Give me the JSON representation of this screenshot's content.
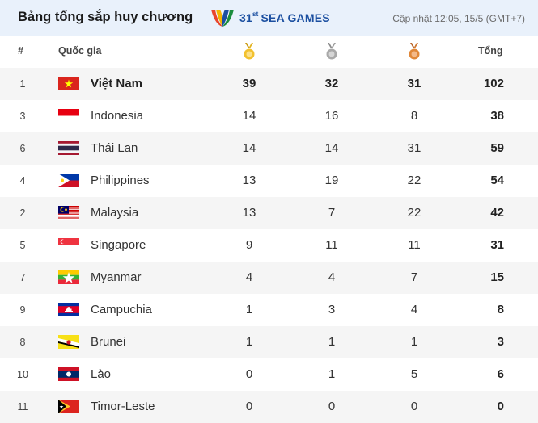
{
  "header": {
    "title": "Bảng tổng sắp huy chương",
    "logo_number": "31",
    "logo_suffix": "st",
    "logo_text": "SEA GAMES",
    "updated": "Cập nhật 12:05, 15/5 (GMT+7)"
  },
  "columns": {
    "rank": "#",
    "country": "Quốc gia",
    "gold_icon": "gold-medal-icon",
    "silver_icon": "silver-medal-icon",
    "bronze_icon": "bronze-medal-icon",
    "total": "Tổng"
  },
  "colors": {
    "gold": "#f2c12e",
    "silver": "#a9a9a9",
    "bronze": "#e0883a",
    "header_bg": "#e9f1fb"
  },
  "rows": [
    {
      "rank": "1",
      "country": "Việt Nam",
      "flag": "vietnam-flag-icon",
      "gold": "39",
      "silver": "32",
      "bronze": "31",
      "total": "102"
    },
    {
      "rank": "3",
      "country": "Indonesia",
      "flag": "indonesia-flag-icon",
      "gold": "14",
      "silver": "16",
      "bronze": "8",
      "total": "38"
    },
    {
      "rank": "6",
      "country": "Thái Lan",
      "flag": "thailand-flag-icon",
      "gold": "14",
      "silver": "14",
      "bronze": "31",
      "total": "59"
    },
    {
      "rank": "4",
      "country": "Philippines",
      "flag": "philippines-flag-icon",
      "gold": "13",
      "silver": "19",
      "bronze": "22",
      "total": "54"
    },
    {
      "rank": "2",
      "country": "Malaysia",
      "flag": "malaysia-flag-icon",
      "gold": "13",
      "silver": "7",
      "bronze": "22",
      "total": "42"
    },
    {
      "rank": "5",
      "country": "Singapore",
      "flag": "singapore-flag-icon",
      "gold": "9",
      "silver": "11",
      "bronze": "11",
      "total": "31"
    },
    {
      "rank": "7",
      "country": "Myanmar",
      "flag": "myanmar-flag-icon",
      "gold": "4",
      "silver": "4",
      "bronze": "7",
      "total": "15"
    },
    {
      "rank": "9",
      "country": "Campuchia",
      "flag": "cambodia-flag-icon",
      "gold": "1",
      "silver": "3",
      "bronze": "4",
      "total": "8"
    },
    {
      "rank": "8",
      "country": "Brunei",
      "flag": "brunei-flag-icon",
      "gold": "1",
      "silver": "1",
      "bronze": "1",
      "total": "3"
    },
    {
      "rank": "10",
      "country": "Lào",
      "flag": "laos-flag-icon",
      "gold": "0",
      "silver": "1",
      "bronze": "5",
      "total": "6"
    },
    {
      "rank": "11",
      "country": "Timor-Leste",
      "flag": "timor-leste-flag-icon",
      "gold": "0",
      "silver": "0",
      "bronze": "0",
      "total": "0"
    }
  ]
}
